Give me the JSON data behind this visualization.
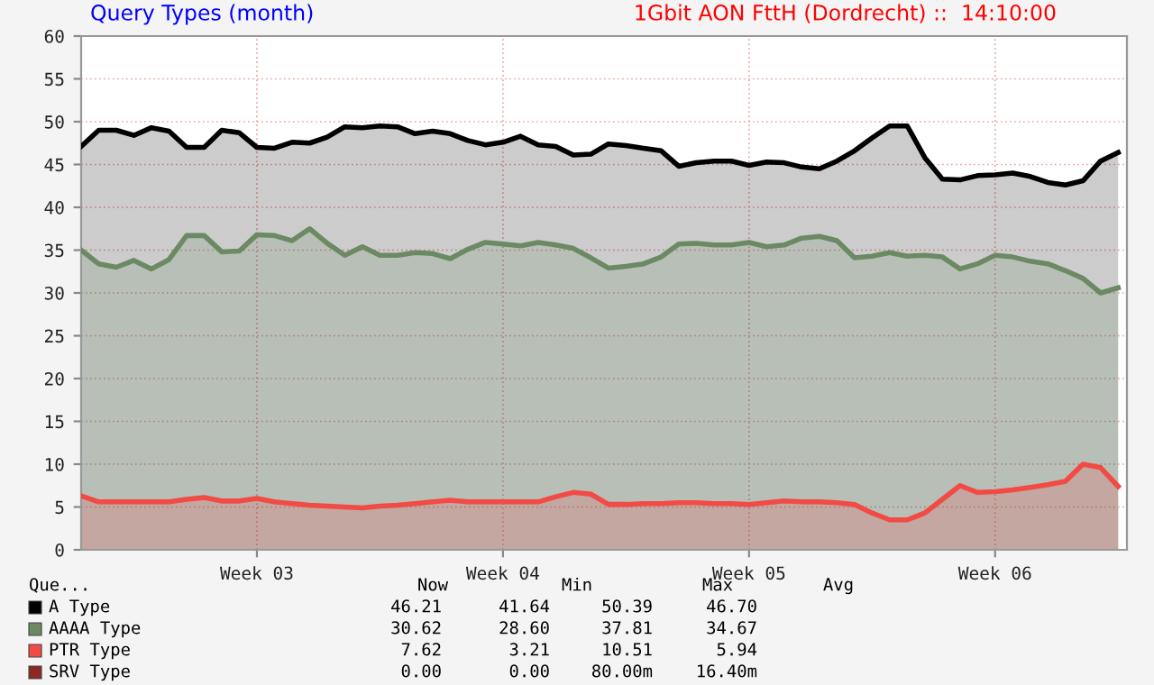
{
  "chart_data": {
    "type": "area",
    "title": "Query Types (month)",
    "subtitle": "1Gbit AON FttH (Dordrecht) ::  14:10:00",
    "categories": [
      null,
      null,
      null,
      null,
      null,
      null,
      null,
      null,
      null,
      null,
      "Week 03",
      null,
      null,
      null,
      null,
      null,
      null,
      null,
      null,
      null,
      null,
      null,
      null,
      null,
      "Week 04",
      null,
      null,
      null,
      null,
      null,
      null,
      null,
      null,
      null,
      null,
      null,
      null,
      null,
      "Week 05",
      null,
      null,
      null,
      null,
      null,
      null,
      null,
      null,
      null,
      null,
      null,
      null,
      null,
      "Week 06",
      null,
      null,
      null,
      null,
      null,
      null,
      null
    ],
    "ylim": [
      0,
      60
    ],
    "yticks": [
      0,
      5,
      10,
      15,
      20,
      25,
      30,
      35,
      40,
      45,
      50,
      55,
      60
    ],
    "grid": true,
    "legend": "bottom",
    "series": [
      {
        "name": "A Type",
        "color": "#000000",
        "values": [
          47.1,
          49.0,
          49.0,
          48.4,
          49.3,
          48.9,
          47.0,
          47.0,
          49.0,
          48.7,
          47.0,
          46.9,
          47.6,
          47.5,
          48.2,
          49.4,
          49.3,
          49.5,
          49.4,
          48.6,
          48.9,
          48.6,
          47.8,
          47.3,
          47.6,
          48.3,
          47.3,
          47.1,
          46.1,
          46.2,
          47.4,
          47.2,
          46.9,
          46.6,
          44.8,
          45.2,
          45.4,
          45.4,
          44.9,
          45.3,
          45.2,
          44.7,
          44.5,
          45.4,
          46.6,
          48.1,
          49.5,
          49.5,
          45.8,
          43.3,
          43.2,
          43.7,
          43.8,
          44.0,
          43.6,
          42.9,
          42.6,
          43.1,
          45.4,
          46.4
        ]
      },
      {
        "name": "AAAA Type",
        "color": "#6b8a63",
        "values": [
          35.0,
          33.4,
          33.0,
          33.8,
          32.8,
          33.9,
          36.7,
          36.7,
          34.8,
          34.9,
          36.8,
          36.7,
          36.1,
          37.5,
          35.8,
          34.4,
          35.4,
          34.4,
          34.4,
          34.7,
          34.6,
          34.0,
          35.1,
          35.9,
          35.7,
          35.5,
          35.9,
          35.6,
          35.2,
          34.1,
          32.9,
          33.1,
          33.4,
          34.2,
          35.7,
          35.8,
          35.6,
          35.6,
          35.9,
          35.4,
          35.6,
          36.4,
          36.6,
          36.1,
          34.1,
          34.3,
          34.7,
          34.3,
          34.4,
          34.2,
          32.8,
          33.4,
          34.4,
          34.2,
          33.7,
          33.4,
          32.6,
          31.7,
          30.0,
          30.6
        ]
      },
      {
        "name": "PTR Type",
        "color": "#f24b45",
        "values": [
          6.3,
          5.6,
          5.6,
          5.6,
          5.6,
          5.6,
          5.9,
          6.1,
          5.7,
          5.7,
          6.0,
          5.6,
          5.4,
          5.2,
          5.1,
          5.0,
          4.9,
          5.1,
          5.2,
          5.4,
          5.6,
          5.8,
          5.6,
          5.6,
          5.6,
          5.6,
          5.6,
          6.2,
          6.7,
          6.5,
          5.3,
          5.3,
          5.4,
          5.4,
          5.5,
          5.5,
          5.4,
          5.4,
          5.3,
          5.5,
          5.7,
          5.6,
          5.6,
          5.5,
          5.3,
          4.3,
          3.5,
          3.5,
          4.3,
          5.9,
          7.5,
          6.7,
          6.8,
          7.0,
          7.3,
          7.6,
          8.0,
          10.0,
          9.6,
          7.4
        ]
      },
      {
        "name": "SRV Type",
        "color": "#8c2a22",
        "values": [
          null,
          null,
          null,
          null,
          null,
          null,
          null,
          null,
          null,
          null,
          null,
          null,
          null,
          null,
          null,
          null,
          null,
          null,
          null,
          null,
          null,
          null,
          null,
          null,
          null,
          null,
          null,
          null,
          null,
          null,
          null,
          null,
          null,
          null,
          null,
          null,
          null,
          null,
          null,
          null,
          null,
          null,
          null,
          null,
          null,
          null,
          null,
          null,
          null,
          null,
          null,
          null,
          null,
          null,
          null,
          null,
          null,
          null,
          null,
          null
        ]
      }
    ],
    "annotations": [
      "Que...",
      "Now",
      "Min",
      "Max",
      "Avg",
      "46.21",
      "41.64",
      "50.39",
      "46.70",
      "30.62",
      "28.60",
      "37.81",
      "34.67",
      "7.62",
      "3.21",
      "10.51",
      "5.94",
      "0.00",
      "0.00",
      "80.00m",
      "16.40m"
    ]
  }
}
